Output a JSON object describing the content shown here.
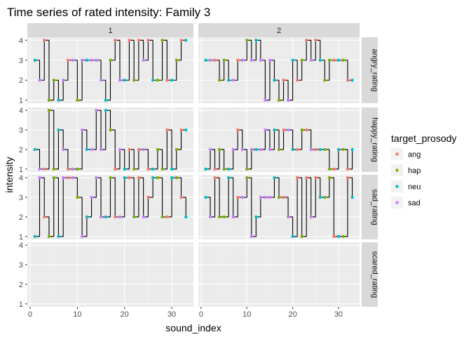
{
  "chart_data": {
    "type": "line",
    "title": "Time series of rated intensity: Family 3",
    "xlabel": "sound_index",
    "ylabel": "intensity",
    "xlim": [
      -0.6,
      34.6
    ],
    "ylim": [
      0.85,
      4.15
    ],
    "x_ticks": [
      0,
      10,
      20,
      30
    ],
    "y_ticks": [
      1,
      2,
      3,
      4
    ],
    "grid": true,
    "step": true,
    "facet_columns": [
      "1",
      "2"
    ],
    "facet_rows": [
      "angry_rating",
      "happy_rating",
      "sad_rating",
      "scared_rating"
    ],
    "legend": {
      "title": "target_prosody",
      "position": "right",
      "entries": [
        {
          "label": "ang",
          "color": "#F8766D"
        },
        {
          "label": "hap",
          "color": "#7CAE00"
        },
        {
          "label": "neu",
          "color": "#00BFC4"
        },
        {
          "label": "sad",
          "color": "#C77CFF"
        }
      ]
    },
    "prosody_by_index": [
      "neu",
      "sad",
      "ang",
      "hap",
      "hap",
      "neu",
      "sad",
      "ang",
      "sad",
      "hap",
      "sad",
      "neu",
      "sad",
      "sad",
      "sad",
      "neu",
      "hap",
      "ang",
      "sad",
      "neu",
      "ang",
      "hap",
      "ang",
      "sad",
      "ang",
      "neu",
      "hap",
      "hap",
      "ang",
      "neu",
      "hap",
      "ang",
      "neu"
    ],
    "panels": {
      "1": {
        "angry_rating": [
          3,
          2,
          4,
          1,
          2,
          1,
          2,
          3,
          3,
          1,
          3,
          3,
          3,
          3,
          2,
          1,
          3,
          4,
          2,
          2,
          4,
          2,
          4,
          3,
          4,
          2,
          2,
          4,
          2,
          2,
          3,
          4,
          4
        ],
        "happy_rating": [
          2,
          1,
          1,
          4,
          1,
          3,
          2,
          1,
          1,
          1,
          3,
          2,
          2,
          4,
          2,
          4,
          3,
          1,
          2,
          1,
          2,
          1,
          2,
          2,
          1,
          1,
          2,
          1,
          3,
          1,
          2,
          3,
          3
        ],
        "sad_rating": [
          1,
          4,
          2,
          1,
          4,
          1,
          4,
          4,
          4,
          3,
          1,
          2,
          3,
          4,
          2,
          2,
          4,
          2,
          2,
          4,
          4,
          2,
          4,
          2,
          3,
          4,
          4,
          2,
          2,
          4,
          4,
          3,
          2
        ],
        "scared_rating": []
      },
      "2": {
        "angry_rating": [
          3,
          3,
          3,
          2,
          3,
          2,
          2,
          3,
          3,
          4,
          3,
          4,
          3,
          1,
          3,
          2,
          1,
          2,
          1,
          3,
          2,
          3,
          4,
          3,
          4,
          3,
          2,
          3,
          3,
          3,
          3,
          2,
          2
        ],
        "happy_rating": [
          1,
          2,
          1,
          2,
          1,
          1,
          2,
          3,
          2,
          1,
          2,
          2,
          2,
          3,
          2,
          3,
          2,
          3,
          3,
          2,
          2,
          3,
          3,
          2,
          2,
          2,
          2,
          1,
          1,
          2,
          2,
          1,
          2
        ],
        "sad_rating": [
          3,
          2,
          4,
          2,
          2,
          4,
          2,
          3,
          3,
          4,
          1,
          2,
          3,
          3,
          3,
          4,
          3,
          3,
          2,
          1,
          4,
          1,
          4,
          2,
          4,
          3,
          3,
          4,
          1,
          1,
          1,
          4,
          3
        ],
        "scared_rating": []
      }
    }
  }
}
